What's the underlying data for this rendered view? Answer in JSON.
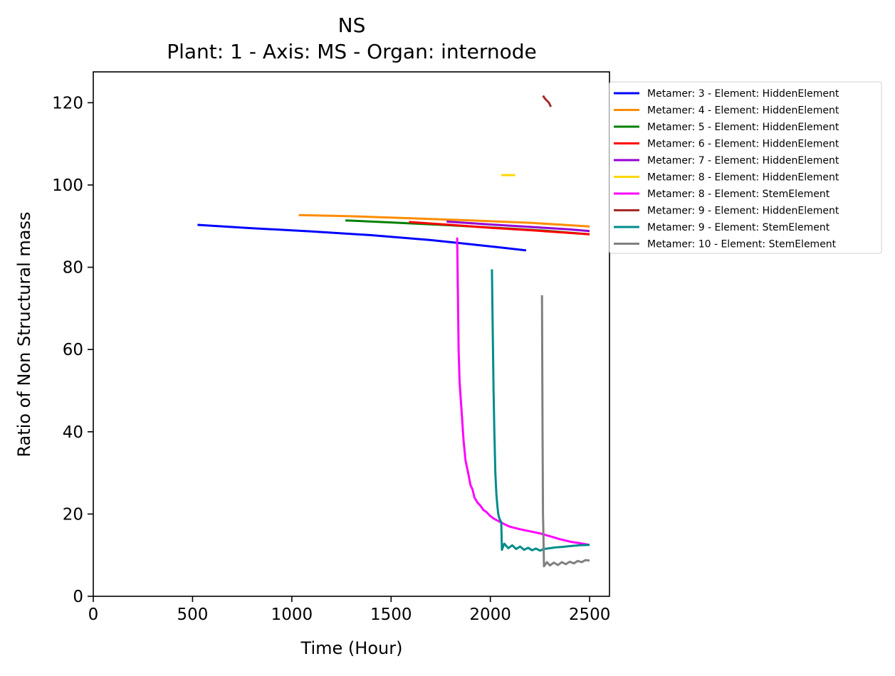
{
  "chart_data": {
    "type": "line",
    "title": "NS",
    "subtitle": "Plant: 1 - Axis: MS - Organ: internode",
    "xlabel": "Time (Hour)",
    "ylabel": "Ratio of Non Structural mass",
    "xlim": [
      0,
      2600
    ],
    "ylim": [
      0,
      127.5
    ],
    "xticks": [
      0,
      500,
      1000,
      1500,
      2000,
      2500
    ],
    "yticks": [
      0,
      20,
      40,
      60,
      80,
      100,
      120
    ],
    "grid": false,
    "legend_position": "outside-right",
    "series": [
      {
        "name": "Metamer: 3 - Element: HiddenElement",
        "color": "#0000ff",
        "points": [
          [
            525,
            90.3
          ],
          [
            800,
            89.5
          ],
          [
            1100,
            88.7
          ],
          [
            1400,
            87.8
          ],
          [
            1700,
            86.6
          ],
          [
            1900,
            85.6
          ],
          [
            2050,
            84.8
          ],
          [
            2180,
            84.1
          ]
        ]
      },
      {
        "name": "Metamer: 4 - Element: HiddenElement",
        "color": "#ff8c00",
        "points": [
          [
            1035,
            92.7
          ],
          [
            1300,
            92.4
          ],
          [
            1600,
            91.9
          ],
          [
            1900,
            91.4
          ],
          [
            2200,
            90.8
          ],
          [
            2500,
            89.9
          ]
        ]
      },
      {
        "name": "Metamer: 5 - Element: HiddenElement",
        "color": "#008000",
        "points": [
          [
            1270,
            91.4
          ],
          [
            1500,
            90.9
          ],
          [
            1800,
            90.2
          ],
          [
            2100,
            89.4
          ],
          [
            2300,
            88.8
          ],
          [
            2500,
            88.0
          ]
        ]
      },
      {
        "name": "Metamer: 6 - Element: HiddenElement",
        "color": "#ff0000",
        "points": [
          [
            1590,
            91.0
          ],
          [
            1800,
            90.3
          ],
          [
            2000,
            89.6
          ],
          [
            2200,
            89.0
          ],
          [
            2500,
            88.0
          ]
        ]
      },
      {
        "name": "Metamer: 7 - Element: HiddenElement",
        "color": "#9400d3",
        "points": [
          [
            1780,
            91.1
          ],
          [
            2000,
            90.4
          ],
          [
            2200,
            89.8
          ],
          [
            2400,
            89.2
          ],
          [
            2500,
            88.8
          ]
        ]
      },
      {
        "name": "Metamer: 8 - Element: HiddenElement",
        "color": "#ffd700",
        "points": [
          [
            2055,
            102.4
          ],
          [
            2085,
            102.4
          ],
          [
            2125,
            102.4
          ]
        ]
      },
      {
        "name": "Metamer: 8 - Element: StemElement",
        "color": "#ff00ff",
        "points": [
          [
            1833,
            87.2
          ],
          [
            1836,
            75.0
          ],
          [
            1840,
            60.0
          ],
          [
            1845,
            52.0
          ],
          [
            1855,
            45.0
          ],
          [
            1865,
            38.0
          ],
          [
            1875,
            33.0
          ],
          [
            1888,
            30.0
          ],
          [
            1900,
            27.0
          ],
          [
            1910,
            26.0
          ],
          [
            1920,
            24.0
          ],
          [
            1935,
            22.8
          ],
          [
            1950,
            22.0
          ],
          [
            1965,
            21.0
          ],
          [
            1980,
            20.5
          ],
          [
            2000,
            19.5
          ],
          [
            2020,
            18.8
          ],
          [
            2040,
            18.3
          ],
          [
            2060,
            17.8
          ],
          [
            2080,
            17.3
          ],
          [
            2100,
            16.9
          ],
          [
            2150,
            16.3
          ],
          [
            2200,
            15.8
          ],
          [
            2250,
            15.3
          ],
          [
            2300,
            14.6
          ],
          [
            2350,
            13.9
          ],
          [
            2400,
            13.3
          ],
          [
            2450,
            12.9
          ],
          [
            2500,
            12.5
          ]
        ]
      },
      {
        "name": "Metamer: 9 - Element: HiddenElement",
        "color": "#a52a2a",
        "points": [
          [
            2265,
            121.7
          ],
          [
            2275,
            121.0
          ],
          [
            2285,
            120.5
          ],
          [
            2295,
            120.0
          ],
          [
            2305,
            119.0
          ]
        ]
      },
      {
        "name": "Metamer: 9 - Element: StemElement",
        "color": "#008b8b",
        "points": [
          [
            2008,
            79.5
          ],
          [
            2012,
            65.0
          ],
          [
            2016,
            50.0
          ],
          [
            2020,
            40.0
          ],
          [
            2025,
            30.0
          ],
          [
            2030,
            25.0
          ],
          [
            2035,
            22.0
          ],
          [
            2040,
            20.0
          ],
          [
            2045,
            19.0
          ],
          [
            2055,
            18.0
          ],
          [
            2058,
            11.3
          ],
          [
            2070,
            12.8
          ],
          [
            2090,
            11.7
          ],
          [
            2110,
            12.4
          ],
          [
            2130,
            11.5
          ],
          [
            2150,
            12.1
          ],
          [
            2170,
            11.3
          ],
          [
            2190,
            11.8
          ],
          [
            2210,
            11.2
          ],
          [
            2230,
            11.6
          ],
          [
            2250,
            11.1
          ],
          [
            2270,
            11.5
          ],
          [
            2300,
            11.7
          ],
          [
            2330,
            11.9
          ],
          [
            2360,
            12.0
          ],
          [
            2400,
            12.2
          ],
          [
            2450,
            12.4
          ],
          [
            2500,
            12.5
          ]
        ]
      },
      {
        "name": "Metamer: 10 - Element: StemElement",
        "color": "#808080",
        "points": [
          [
            2260,
            73.2
          ],
          [
            2263,
            40.0
          ],
          [
            2265,
            20.0
          ],
          [
            2267,
            16.0
          ],
          [
            2270,
            7.3
          ],
          [
            2285,
            8.3
          ],
          [
            2300,
            7.5
          ],
          [
            2320,
            8.2
          ],
          [
            2340,
            7.6
          ],
          [
            2360,
            8.3
          ],
          [
            2380,
            7.8
          ],
          [
            2400,
            8.4
          ],
          [
            2420,
            8.0
          ],
          [
            2440,
            8.6
          ],
          [
            2460,
            8.3
          ],
          [
            2480,
            8.8
          ],
          [
            2500,
            8.7
          ]
        ]
      }
    ]
  }
}
